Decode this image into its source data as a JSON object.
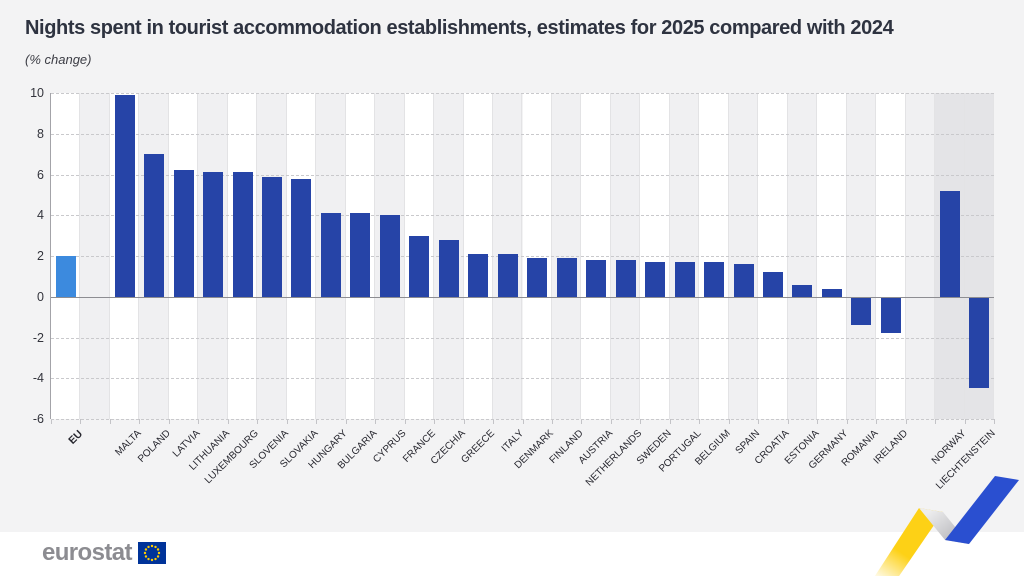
{
  "page": {
    "title": "Nights spent in tourist accommodation establishments, estimates for 2025 compared with 2024",
    "subtitle": "(% change)",
    "footer": {
      "logo_text": "eurostat",
      "flag_icon": "eu-flag-icon"
    },
    "decoration": "blue-yellow-ribbon-icon"
  },
  "colors": {
    "bar_blue": "#2644a7",
    "eu_bar_blue": "#3c8ade",
    "efta_column_grey": "#e4e4e7",
    "page_background": "#f3f3f4",
    "footer_background": "#ffffff",
    "flag_blue": "#003399",
    "star_yellow": "#ffcc00",
    "ribbon_yellow": "#fdd116",
    "ribbon_blue": "#2a4fd0"
  },
  "chart_data": {
    "type": "bar",
    "title": "Nights spent in tourist accommodation establishments, estimates for 2025 compared with 2024",
    "subtitle": "(% change)",
    "xlabel": "",
    "ylabel": "% change",
    "ylim": [
      -6,
      10
    ],
    "yticks": [
      10,
      8,
      6,
      4,
      2,
      0,
      -2,
      -4,
      -6
    ],
    "grid": "horizontal-dashed",
    "legend": "none",
    "categories": [
      "EU",
      "MALTA",
      "POLAND",
      "LATVIA",
      "LITHUANIA",
      "LUXEMBOURG",
      "SLOVENIA",
      "SLOVAKIA",
      "HUNGARY",
      "BULGARIA",
      "CYPRUS",
      "FRANCE",
      "CZECHIA",
      "GREECE",
      "ITALY",
      "DENMARK",
      "FINLAND",
      "AUSTRIA",
      "NETHERLANDS",
      "SWEDEN",
      "PORTUGAL",
      "BELGIUM",
      "SPAIN",
      "CROATIA",
      "ESTONIA",
      "GERMANY",
      "ROMANIA",
      "IRELAND",
      "NORWAY",
      "LIECHTENSTEIN"
    ],
    "values": [
      2.0,
      9.9,
      7.0,
      6.2,
      6.1,
      6.1,
      5.9,
      5.8,
      4.1,
      4.1,
      4.0,
      3.0,
      2.8,
      2.1,
      2.1,
      1.9,
      1.9,
      1.8,
      1.8,
      1.7,
      1.7,
      1.7,
      1.6,
      1.2,
      0.6,
      0.4,
      -1.4,
      -1.8,
      5.2,
      -4.5
    ],
    "groups": [
      "eu",
      "member",
      "member",
      "member",
      "member",
      "member",
      "member",
      "member",
      "member",
      "member",
      "member",
      "member",
      "member",
      "member",
      "member",
      "member",
      "member",
      "member",
      "member",
      "member",
      "member",
      "member",
      "member",
      "member",
      "member",
      "member",
      "member",
      "member",
      "efta",
      "efta"
    ],
    "separator_after_labels": [
      "EU",
      "IRELAND"
    ],
    "highlighted_background_labels": [
      "NORWAY",
      "LIECHTENSTEIN"
    ]
  }
}
